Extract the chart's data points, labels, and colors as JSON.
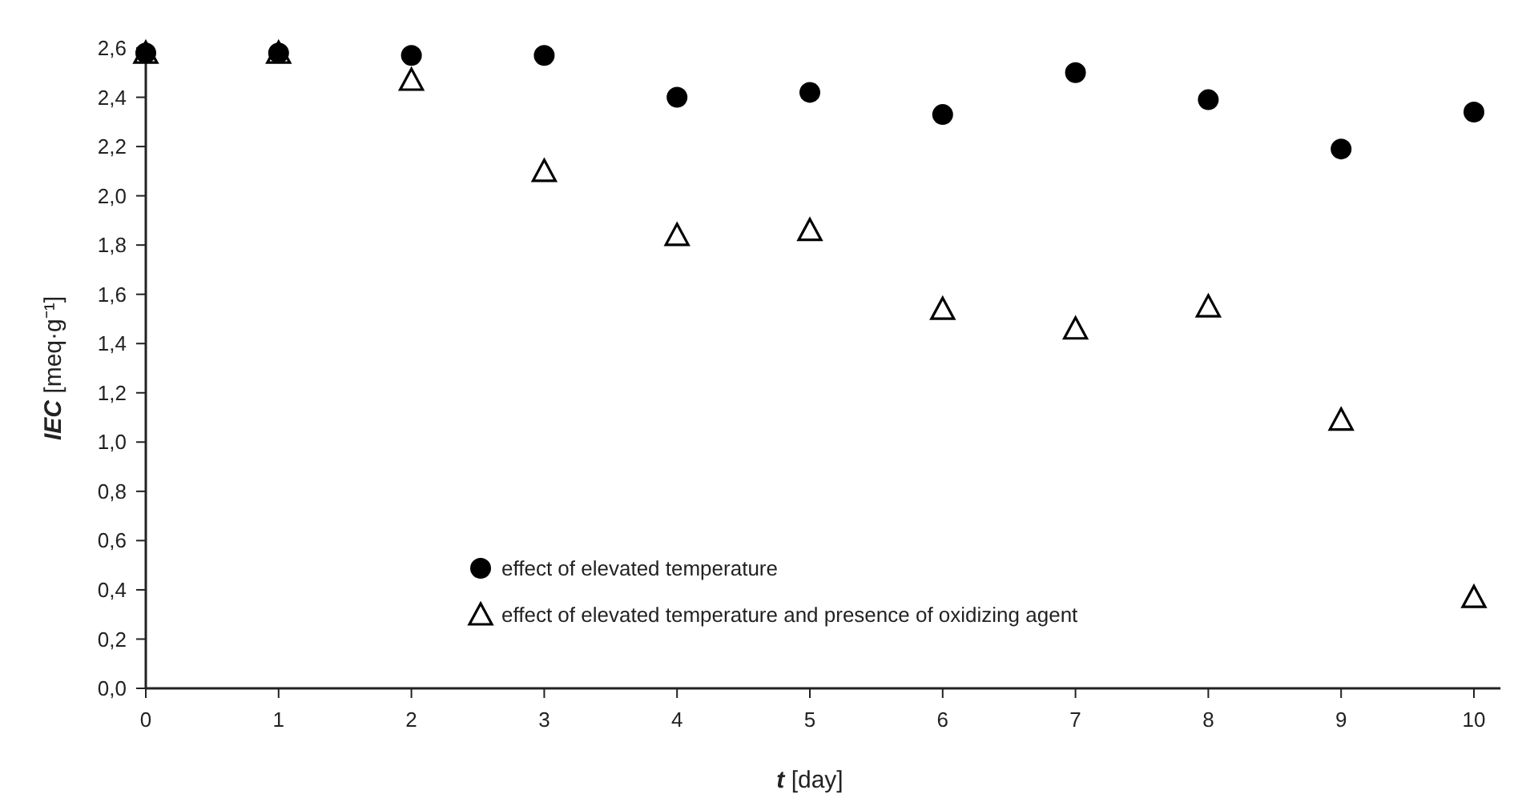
{
  "chart_data": {
    "type": "scatter",
    "xlabel": "t [day]",
    "ylabel": "IEC [meq·g⁻¹]",
    "x": [
      0,
      1,
      2,
      3,
      4,
      5,
      6,
      7,
      8,
      9,
      10
    ],
    "series": [
      {
        "name": "effect of elevated temperature",
        "color": "#000000",
        "marker": "circle",
        "values": [
          2.58,
          2.58,
          2.57,
          2.57,
          2.4,
          2.42,
          2.33,
          2.5,
          2.39,
          2.19,
          2.34
        ]
      },
      {
        "name": "effect of elevated temperature and presence of oxidizing agent",
        "color": "#000000",
        "marker": "triangle",
        "values": [
          2.58,
          2.58,
          2.47,
          2.1,
          1.84,
          1.86,
          1.54,
          1.46,
          1.55,
          1.09,
          0.37
        ]
      }
    ],
    "xlim": [
      0,
      10.2
    ],
    "xticks": [
      0,
      1,
      2,
      3,
      4,
      5,
      6,
      7,
      8,
      9,
      10
    ],
    "ylim": [
      0,
      2.6
    ],
    "yticks": [
      {
        "value": 0,
        "label": "0,0"
      },
      {
        "value": 0.2,
        "label": "0,2"
      },
      {
        "value": 0.4,
        "label": "0,4"
      },
      {
        "value": 0.6,
        "label": "0,6"
      },
      {
        "value": 0.8,
        "label": "0,8"
      },
      {
        "value": 1,
        "label": "1,0"
      },
      {
        "value": 1.2,
        "label": "1,2"
      },
      {
        "value": 1.4,
        "label": "1,4"
      },
      {
        "value": 1.6,
        "label": "1,6"
      },
      {
        "value": 1.8,
        "label": "1,8"
      },
      {
        "value": 2,
        "label": "2,0"
      },
      {
        "value": 2.2,
        "label": "2,2"
      },
      {
        "value": 2.4,
        "label": "2,4"
      },
      {
        "value": 2.6,
        "label": "2,6"
      }
    ],
    "legend": "bottom",
    "grid": false
  }
}
